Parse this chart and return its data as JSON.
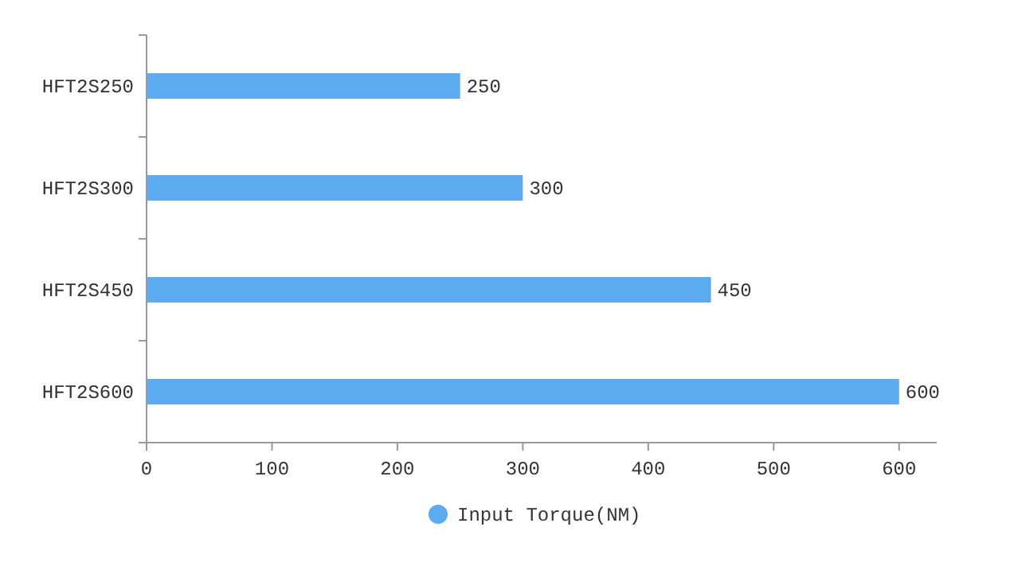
{
  "chart_data": {
    "type": "bar",
    "orientation": "horizontal",
    "categories": [
      "HFT2S250",
      "HFT2S300",
      "HFT2S450",
      "HFT2S600"
    ],
    "series": [
      {
        "name": "Input Torque(NM)",
        "color": "#5aabf0",
        "values": [
          250,
          300,
          450,
          600
        ]
      }
    ],
    "xlim": [
      0,
      630
    ],
    "xticks": [
      0,
      100,
      200,
      300,
      400,
      500,
      600
    ],
    "data_labels": true,
    "legend": "bottom",
    "grid": false
  }
}
